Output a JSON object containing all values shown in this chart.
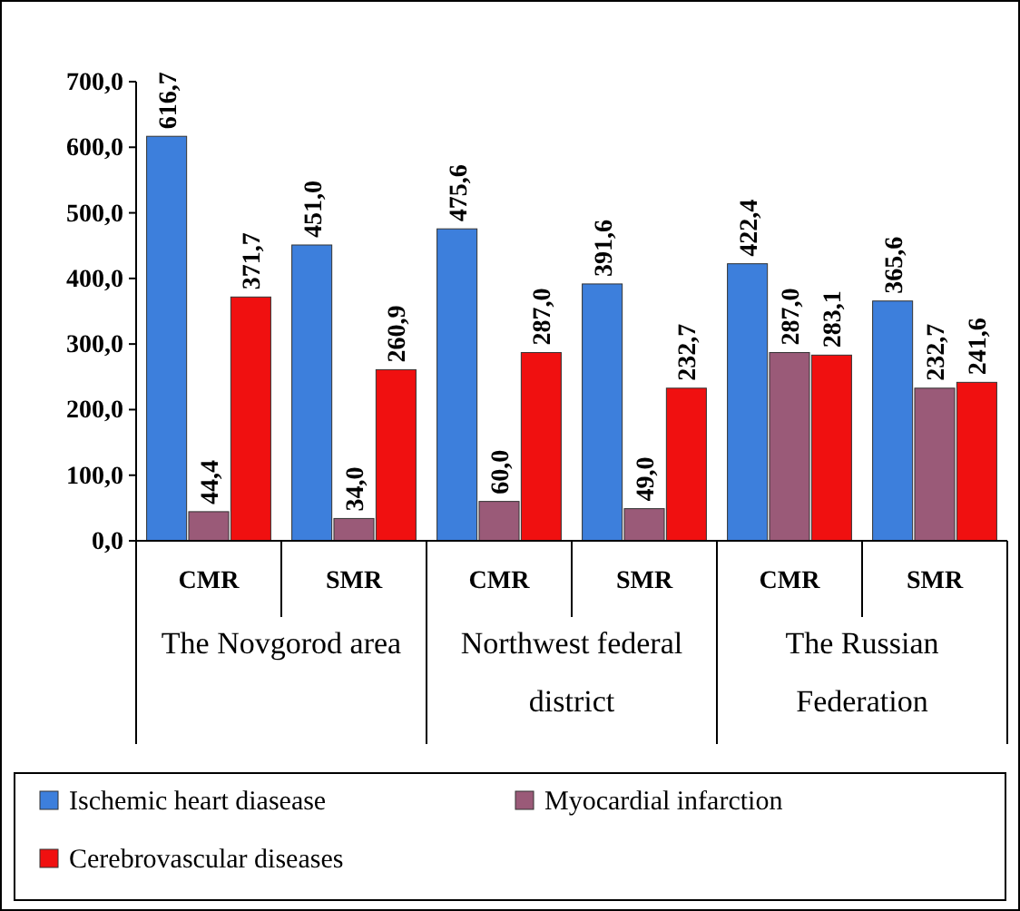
{
  "chart_data": {
    "type": "bar",
    "categories": [
      "CMR",
      "SMR",
      "CMR",
      "SMR",
      "CMR",
      "SMR"
    ],
    "annotations": [
      "The Novgorod area",
      "Northwest federal district",
      "The Russian Federation"
    ],
    "series": [
      {
        "name": "Ischemic heart diasease",
        "color": "#3d7fdc",
        "values": [
          616.7,
          451.0,
          475.6,
          391.6,
          422.4,
          365.6
        ],
        "value_labels": [
          "616,7",
          "451,0",
          "475,6",
          "391,6",
          "422,4",
          "365,6"
        ]
      },
      {
        "name": "Myocardial infarction",
        "color": "#9a5a78",
        "values": [
          44.4,
          34.0,
          60.0,
          49.0,
          287.0,
          232.7
        ],
        "value_labels": [
          "44,4",
          "34,0",
          "60,0",
          "49,0",
          "287,0",
          "232,7"
        ]
      },
      {
        "name": "Cerebrovascular diseases",
        "color": "#f01010",
        "values": [
          371.7,
          260.9,
          287.0,
          232.7,
          283.1,
          241.6
        ],
        "value_labels": [
          "371,7",
          "260,9",
          "287,0",
          "232,7",
          "283,1",
          "241,6"
        ]
      }
    ],
    "ylim": [
      0,
      700
    ],
    "yticks": [
      {
        "value": 0,
        "label": "0,0"
      },
      {
        "value": 100,
        "label": "100,0"
      },
      {
        "value": 200,
        "label": "200,0"
      },
      {
        "value": 300,
        "label": "300,0"
      },
      {
        "value": 400,
        "label": "400,0"
      },
      {
        "value": 500,
        "label": "500,0"
      },
      {
        "value": 600,
        "label": "600,0"
      },
      {
        "value": 700,
        "label": "700,0"
      }
    ],
    "legend": "bottom"
  }
}
